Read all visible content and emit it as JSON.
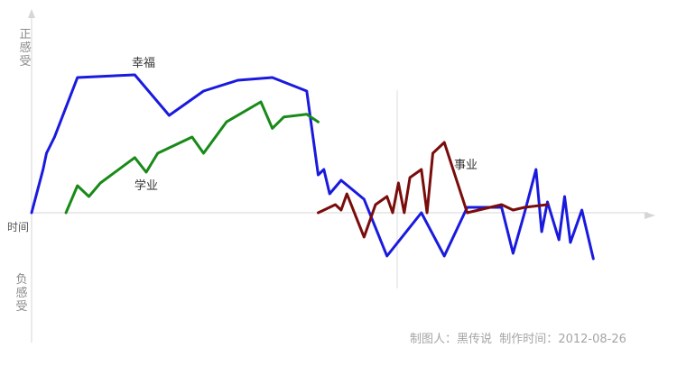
{
  "chart_data": {
    "type": "line",
    "x_axis_label": "时间",
    "y_axis_positive_label": "正感受",
    "y_axis_negative_label": "负感受",
    "grid": false,
    "series": [
      {
        "name": "幸福",
        "color": "#1a1adf",
        "points": [
          [
            1,
            0
          ],
          [
            2,
            0.8
          ],
          [
            2.3,
            1.1
          ],
          [
            3,
            1.4
          ],
          [
            5,
            2.5
          ],
          [
            10,
            2.55
          ],
          [
            13,
            1.8
          ],
          [
            16,
            2.25
          ],
          [
            19,
            2.45
          ],
          [
            22,
            2.5
          ],
          [
            25,
            2.25
          ],
          [
            26,
            0.7
          ],
          [
            26.5,
            0.8
          ],
          [
            27,
            0.35
          ],
          [
            28,
            0.6
          ],
          [
            30,
            0.25
          ],
          [
            32,
            -0.8
          ],
          [
            35,
            0
          ],
          [
            37,
            -0.8
          ],
          [
            39,
            0.1
          ],
          [
            42,
            0.1
          ],
          [
            43,
            -0.75
          ],
          [
            44,
            0
          ],
          [
            45,
            0.8
          ],
          [
            45.5,
            -0.35
          ],
          [
            46,
            0.2
          ],
          [
            47,
            -0.5
          ],
          [
            47.5,
            0.3
          ],
          [
            48,
            -0.55
          ],
          [
            49,
            0.05
          ],
          [
            50,
            -0.85
          ]
        ]
      },
      {
        "name": "学业",
        "color": "#188a18",
        "points": [
          [
            4,
            0
          ],
          [
            5,
            0.5
          ],
          [
            6,
            0.3
          ],
          [
            7,
            0.55
          ],
          [
            10,
            1.02
          ],
          [
            11,
            0.75
          ],
          [
            12,
            1.1
          ],
          [
            15,
            1.4
          ],
          [
            16,
            1.1
          ],
          [
            18,
            1.68
          ],
          [
            21,
            2.05
          ],
          [
            22,
            1.56
          ],
          [
            23,
            1.77
          ],
          [
            25,
            1.82
          ],
          [
            26,
            1.68
          ]
        ]
      },
      {
        "name": "事业",
        "color": "#7a0c0c",
        "points": [
          [
            26,
            0
          ],
          [
            27.5,
            0.15
          ],
          [
            28,
            0.05
          ],
          [
            28.5,
            0.35
          ],
          [
            30,
            -0.45
          ],
          [
            31,
            0.15
          ],
          [
            32,
            0.3
          ],
          [
            32.5,
            0
          ],
          [
            33,
            0.55
          ],
          [
            33.5,
            0
          ],
          [
            34,
            0.65
          ],
          [
            35,
            0.8
          ],
          [
            35.5,
            0
          ],
          [
            36,
            1.1
          ],
          [
            37,
            1.3
          ],
          [
            39,
            0
          ],
          [
            42,
            0.15
          ],
          [
            43,
            0.05
          ],
          [
            44,
            0.1
          ],
          [
            46,
            0.15
          ]
        ]
      }
    ]
  },
  "credit": {
    "maker_label": "制图人：",
    "maker": "黑传说",
    "date_label": "制作时间：",
    "date": "2012-08-26"
  }
}
